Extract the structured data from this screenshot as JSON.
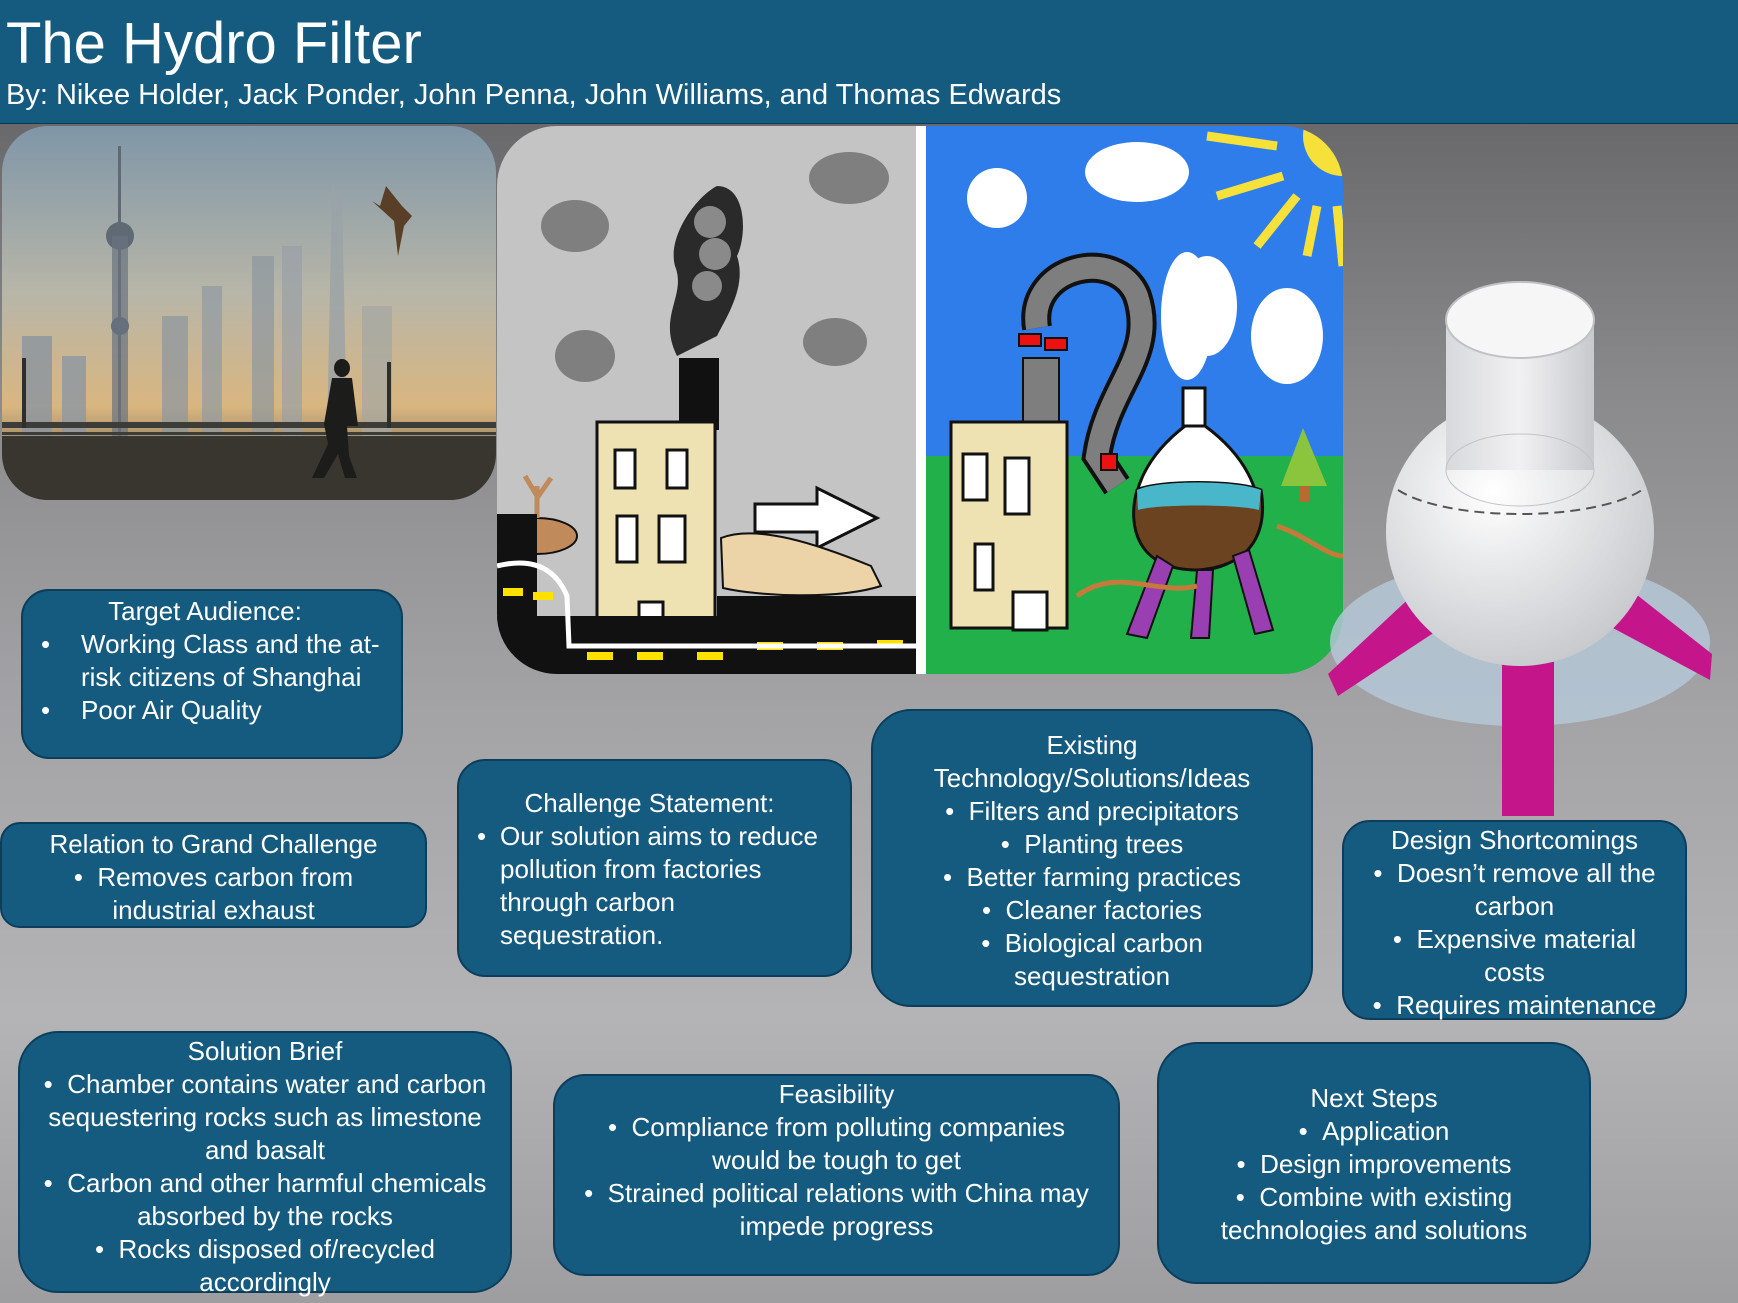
{
  "header": {
    "title": "The Hydro Filter",
    "authors": "By: Nikee Holder, Jack Ponder, John Penna, John Williams, and Thomas Edwards"
  },
  "boxes": {
    "target_audience": {
      "heading": "Target Audience:",
      "items": [
        "Working Class and the at-risk citizens of Shanghai",
        "Poor Air Quality"
      ]
    },
    "grand_challenge": {
      "heading": "Relation to Grand Challenge",
      "items": [
        "Removes carbon from industrial exhaust"
      ]
    },
    "challenge_statement": {
      "heading": "Challenge Statement:",
      "items": [
        "Our solution aims to reduce pollution from factories through carbon sequestration."
      ]
    },
    "existing_tech": {
      "heading": "Existing Technology/Solutions/Ideas",
      "items": [
        "Filters and precipitators",
        "Planting trees",
        "Better farming practices",
        "Cleaner factories",
        "Biological carbon sequestration"
      ]
    },
    "design_shortcomings": {
      "heading": "Design Shortcomings",
      "items": [
        "Doesn’t remove all the carbon",
        "Expensive material costs",
        "Requires maintenance"
      ]
    },
    "solution_brief": {
      "heading": "Solution Brief",
      "items": [
        "Chamber contains water and carbon sequestering rocks such as limestone and basalt",
        "Carbon and other harmful chemicals absorbed by the rocks",
        "Rocks disposed of/recycled accordingly"
      ]
    },
    "feasibility": {
      "heading": "Feasibility",
      "items": [
        "Compliance from polluting companies would be tough to get",
        "Strained political relations with China may impede progress"
      ]
    },
    "next_steps": {
      "heading": "Next Steps",
      "items": [
        "Application",
        "Design improvements",
        "Combine with existing technologies and solutions"
      ]
    }
  },
  "colors": {
    "header_bg": "#155a7f",
    "box_bg": "#155a7f",
    "box_border": "#0c3e5c",
    "text": "#ffffff",
    "leg_magenta": "#c4168a"
  },
  "images": {
    "photo": "smoggy-skyline-photo",
    "drawing": "factory-before-after-drawing",
    "model": "hydro-filter-3d-model"
  }
}
